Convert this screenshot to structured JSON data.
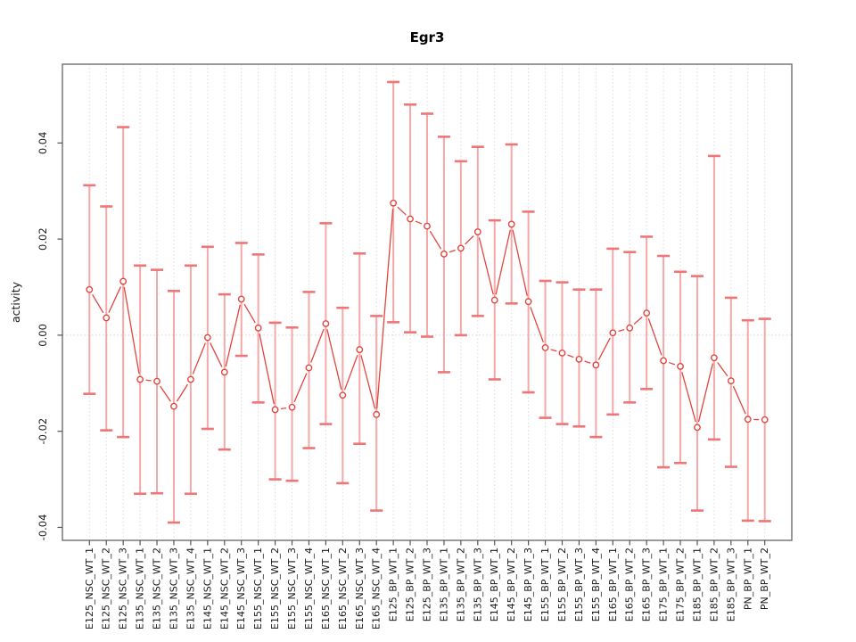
{
  "chart_data": {
    "type": "line",
    "title": "Egr3",
    "ylabel": "activity",
    "xlabel": "",
    "series_name": "activity with error bars",
    "legend_position": "none",
    "grid": "vertical dotted line at every category; horizontal dotted line at y=0",
    "ylim": [
      -0.0427,
      0.0564
    ],
    "y_ticks": [
      {
        "v": 0.04,
        "label": "0.04"
      },
      {
        "v": 0.02,
        "label": "0.02"
      },
      {
        "v": 0.0,
        "label": "0.00"
      },
      {
        "v": -0.02,
        "label": "-0.02"
      },
      {
        "v": -0.04,
        "label": "-0.04"
      }
    ],
    "categories": [
      "E125_NSC_WT_1",
      "E125_NSC_WT_2",
      "E125_NSC_WT_3",
      "E135_NSC_WT_1",
      "E135_NSC_WT_2",
      "E135_NSC_WT_3",
      "E135_NSC_WT_4",
      "E145_NSC_WT_1",
      "E145_NSC_WT_2",
      "E145_NSC_WT_3",
      "E155_NSC_WT_1",
      "E155_NSC_WT_2",
      "E155_NSC_WT_3",
      "E155_NSC_WT_4",
      "E165_NSC_WT_1",
      "E165_NSC_WT_2",
      "E165_NSC_WT_3",
      "E165_NSC_WT_4",
      "E125_BP_WT_1",
      "E125_BP_WT_2",
      "E125_BP_WT_3",
      "E135_BP_WT_1",
      "E135_BP_WT_2",
      "E135_BP_WT_3",
      "E145_BP_WT_1",
      "E145_BP_WT_2",
      "E145_BP_WT_3",
      "E155_BP_WT_1",
      "E155_BP_WT_2",
      "E155_BP_WT_3",
      "E155_BP_WT_4",
      "E165_BP_WT_1",
      "E165_BP_WT_2",
      "E165_BP_WT_3",
      "E175_BP_WT_1",
      "E175_BP_WT_2",
      "E185_BP_WT_1",
      "E185_BP_WT_2",
      "E185_BP_WT_3",
      "PN_BP_WT_1",
      "PN_BP_WT_2"
    ],
    "points": [
      {
        "label": "E125_NSC_WT_1",
        "y": 0.0095,
        "lo": -0.0122,
        "hi": 0.0312
      },
      {
        "label": "E125_NSC_WT_2",
        "y": 0.0036,
        "lo": -0.0198,
        "hi": 0.0268
      },
      {
        "label": "E125_NSC_WT_3",
        "y": 0.0112,
        "lo": -0.0212,
        "hi": 0.0433
      },
      {
        "label": "E135_NSC_WT_1",
        "y": -0.0092,
        "lo": -0.033,
        "hi": 0.0145
      },
      {
        "label": "E135_NSC_WT_2",
        "y": -0.0096,
        "lo": -0.0329,
        "hi": 0.0136
      },
      {
        "label": "E135_NSC_WT_3",
        "y": -0.0148,
        "lo": -0.039,
        "hi": 0.0092
      },
      {
        "label": "E135_NSC_WT_4",
        "y": -0.0092,
        "lo": -0.033,
        "hi": 0.0145
      },
      {
        "label": "E145_NSC_WT_1",
        "y": -0.0005,
        "lo": -0.0195,
        "hi": 0.0184
      },
      {
        "label": "E145_NSC_WT_2",
        "y": -0.0077,
        "lo": -0.0238,
        "hi": 0.0085
      },
      {
        "label": "E145_NSC_WT_3",
        "y": 0.0075,
        "lo": -0.0043,
        "hi": 0.0192
      },
      {
        "label": "E155_NSC_WT_1",
        "y": 0.0015,
        "lo": -0.014,
        "hi": 0.0168
      },
      {
        "label": "E155_NSC_WT_2",
        "y": -0.0155,
        "lo": -0.03,
        "hi": 0.0026
      },
      {
        "label": "E155_NSC_WT_3",
        "y": -0.015,
        "lo": -0.0303,
        "hi": 0.0016
      },
      {
        "label": "E155_NSC_WT_4",
        "y": -0.0068,
        "lo": -0.0235,
        "hi": 0.009
      },
      {
        "label": "E165_NSC_WT_1",
        "y": 0.0024,
        "lo": -0.0185,
        "hi": 0.0233
      },
      {
        "label": "E165_NSC_WT_2",
        "y": -0.0125,
        "lo": -0.0308,
        "hi": 0.0057
      },
      {
        "label": "E165_NSC_WT_3",
        "y": -0.003,
        "lo": -0.0226,
        "hi": 0.017
      },
      {
        "label": "E165_NSC_WT_4",
        "y": -0.0165,
        "lo": -0.0365,
        "hi": 0.004
      },
      {
        "label": "E125_BP_WT_1",
        "y": 0.0275,
        "lo": 0.0027,
        "hi": 0.0527
      },
      {
        "label": "E125_BP_WT_2",
        "y": 0.0242,
        "lo": 0.0006,
        "hi": 0.048
      },
      {
        "label": "E125_BP_WT_3",
        "y": 0.0227,
        "lo": -0.0003,
        "hi": 0.0461
      },
      {
        "label": "E135_BP_WT_1",
        "y": 0.0169,
        "lo": -0.0077,
        "hi": 0.0413
      },
      {
        "label": "E135_BP_WT_2",
        "y": 0.0181,
        "lo": 0.0,
        "hi": 0.0362
      },
      {
        "label": "E135_BP_WT_3",
        "y": 0.0215,
        "lo": 0.004,
        "hi": 0.0392
      },
      {
        "label": "E145_BP_WT_1",
        "y": 0.0073,
        "lo": -0.0092,
        "hi": 0.0239
      },
      {
        "label": "E145_BP_WT_2",
        "y": 0.0231,
        "lo": 0.0066,
        "hi": 0.0397
      },
      {
        "label": "E145_BP_WT_3",
        "y": 0.007,
        "lo": -0.0119,
        "hi": 0.0257
      },
      {
        "label": "E155_BP_WT_1",
        "y": -0.0026,
        "lo": -0.0172,
        "hi": 0.0113
      },
      {
        "label": "E155_BP_WT_2",
        "y": -0.0037,
        "lo": -0.0185,
        "hi": 0.011
      },
      {
        "label": "E155_BP_WT_3",
        "y": -0.005,
        "lo": -0.019,
        "hi": 0.0095
      },
      {
        "label": "E155_BP_WT_4",
        "y": -0.0062,
        "lo": -0.0212,
        "hi": 0.0095
      },
      {
        "label": "E165_BP_WT_1",
        "y": 0.0005,
        "lo": -0.0165,
        "hi": 0.018
      },
      {
        "label": "E165_BP_WT_2",
        "y": 0.0015,
        "lo": -0.014,
        "hi": 0.0173
      },
      {
        "label": "E165_BP_WT_3",
        "y": 0.0046,
        "lo": -0.0112,
        "hi": 0.0205
      },
      {
        "label": "E175_BP_WT_1",
        "y": -0.0053,
        "lo": -0.0275,
        "hi": 0.0165
      },
      {
        "label": "E175_BP_WT_2",
        "y": -0.0065,
        "lo": -0.0266,
        "hi": 0.0132
      },
      {
        "label": "E185_BP_WT_1",
        "y": -0.0192,
        "lo": -0.0365,
        "hi": 0.0123
      },
      {
        "label": "E185_BP_WT_2",
        "y": -0.0047,
        "lo": -0.0217,
        "hi": 0.0373
      },
      {
        "label": "E185_BP_WT_3",
        "y": -0.0095,
        "lo": -0.0274,
        "hi": 0.0078
      },
      {
        "label": "PN_BP_WT_1",
        "y": -0.0175,
        "lo": -0.0386,
        "hi": 0.0031
      },
      {
        "label": "PN_BP_WT_2",
        "y": -0.0176,
        "lo": -0.0387,
        "hi": 0.0034
      }
    ]
  },
  "style": {
    "background": "#ffffff",
    "point_color": "#e4453f",
    "line_color": "#e4453f",
    "errorbar_stem_color": "#f5a8a8",
    "errorbar_cap_color": "#ee7676",
    "grid_color": "#dcdcdc",
    "zero_line_color": "#d2d2d2",
    "box_color": "#6e6e6e",
    "tick_color": "#555555",
    "tick_label_color": "#1a1a1a",
    "title_color": "#000000"
  }
}
